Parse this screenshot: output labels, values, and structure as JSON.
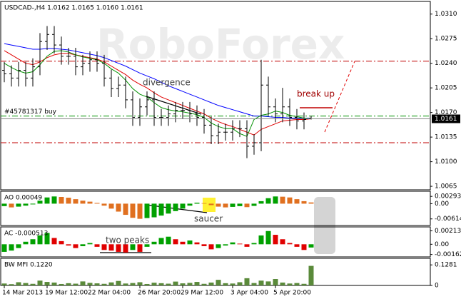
{
  "chart_data": [
    {
      "type": "ohlc",
      "title": "USDCAD-,H4 1.0162 1.0165 1.0160 1.0161",
      "watermark": "RoboForex",
      "open": [
        1.023,
        1.0225,
        1.0219,
        1.023,
        1.0219,
        1.0235,
        1.0271,
        1.0281,
        1.0266,
        1.025,
        1.025,
        1.0235,
        1.024,
        1.0245,
        1.024,
        1.0219,
        1.0204,
        1.0209,
        1.0188,
        1.0163,
        1.0178,
        1.0188,
        1.0163,
        1.0163,
        1.0168,
        1.0173,
        1.0173,
        1.0168,
        1.0163,
        1.0152,
        1.0137,
        1.0142,
        1.0142,
        1.0147,
        1.0147,
        1.0122,
        1.0127,
        1.0209,
        1.0178,
        1.0168,
        1.0178,
        1.0163,
        1.0158,
        1.0162
      ],
      "high": [
        1.0242,
        1.0237,
        1.0242,
        1.0242,
        1.0247,
        1.0283,
        1.0293,
        1.0293,
        1.0278,
        1.0262,
        1.0262,
        1.0252,
        1.0257,
        1.0257,
        1.0252,
        1.0231,
        1.0221,
        1.0221,
        1.02,
        1.019,
        1.02,
        1.02,
        1.0175,
        1.018,
        1.0185,
        1.0185,
        1.0185,
        1.018,
        1.0175,
        1.0164,
        1.0154,
        1.0154,
        1.0159,
        1.0159,
        1.0159,
        1.0139,
        1.0245,
        1.0221,
        1.019,
        1.0205,
        1.019,
        1.0175,
        1.017,
        1.0165
      ],
      "low": [
        1.0213,
        1.0207,
        1.0207,
        1.0207,
        1.0207,
        1.0223,
        1.0259,
        1.0254,
        1.0238,
        1.0238,
        1.0223,
        1.0223,
        1.0228,
        1.0228,
        1.0207,
        1.0192,
        1.0192,
        1.0176,
        1.0151,
        1.0151,
        1.0166,
        1.0151,
        1.0151,
        1.0151,
        1.0156,
        1.0161,
        1.0156,
        1.0151,
        1.014,
        1.0125,
        1.0125,
        1.013,
        1.013,
        1.0135,
        1.0105,
        1.011,
        1.0115,
        1.0166,
        1.0156,
        1.0156,
        1.0151,
        1.0146,
        1.0146,
        1.016
      ],
      "close": [
        1.0225,
        1.0219,
        1.023,
        1.0219,
        1.0235,
        1.0271,
        1.0281,
        1.0266,
        1.025,
        1.025,
        1.0235,
        1.024,
        1.0245,
        1.024,
        1.0219,
        1.0204,
        1.0209,
        1.0188,
        1.0163,
        1.0178,
        1.0188,
        1.0163,
        1.0163,
        1.0168,
        1.0173,
        1.0173,
        1.0168,
        1.0163,
        1.0152,
        1.0137,
        1.0142,
        1.0142,
        1.0147,
        1.0147,
        1.0122,
        1.0127,
        1.0209,
        1.0178,
        1.0168,
        1.0178,
        1.0163,
        1.0158,
        1.016,
        1.0161
      ],
      "color": "#000000",
      "moving_averages": [
        {
          "color": "#0000ff",
          "values": [
            1.0268,
            1.0266,
            1.0264,
            1.0262,
            1.026,
            1.026,
            1.0261,
            1.0261,
            1.026,
            1.0259,
            1.0257,
            1.0255,
            1.0253,
            1.0251,
            1.0248,
            1.0244,
            1.024,
            1.0236,
            1.0231,
            1.0226,
            1.0222,
            1.0218,
            1.0213,
            1.0208,
            1.0204,
            1.02,
            1.0196,
            1.0192,
            1.0188,
            1.0184,
            1.018,
            1.0177,
            1.0174,
            1.0171,
            1.0168,
            1.0165,
            1.0165,
            1.0164,
            1.0163,
            1.0163,
            1.0162,
            1.0162,
            1.0162,
            1.0162
          ]
        },
        {
          "color": "#e00000",
          "values": [
            1.0258,
            1.0252,
            1.0246,
            1.024,
            1.0238,
            1.0242,
            1.0248,
            1.0252,
            1.0254,
            1.0254,
            1.0252,
            1.025,
            1.0248,
            1.0246,
            1.0242,
            1.0236,
            1.023,
            1.0224,
            1.0216,
            1.021,
            1.0205,
            1.0198,
            1.0192,
            1.0188,
            1.0184,
            1.018,
            1.0176,
            1.0172,
            1.0168,
            1.0162,
            1.0157,
            1.0153,
            1.015,
            1.0146,
            1.0142,
            1.0138,
            1.0146,
            1.015,
            1.0154,
            1.0158,
            1.0159,
            1.016,
            1.016,
            1.0161
          ]
        },
        {
          "color": "#009000",
          "values": [
            1.024,
            1.0234,
            1.0229,
            1.0226,
            1.0228,
            1.0238,
            1.025,
            1.0257,
            1.0258,
            1.0256,
            1.0252,
            1.0249,
            1.0247,
            1.0245,
            1.024,
            1.0232,
            1.0226,
            1.0216,
            1.0204,
            1.0196,
            1.0192,
            1.0184,
            1.0177,
            1.0174,
            1.0172,
            1.0171,
            1.0169,
            1.0167,
            1.0163,
            1.0155,
            1.015,
            1.0147,
            1.0147,
            1.014,
            1.0136,
            1.016,
            1.0166,
            1.0168,
            1.0172,
            1.017,
            1.0166,
            1.0164,
            1.0162,
            1.0161
          ]
        }
      ],
      "levels": [
        {
          "value": 1.0243,
          "color": "#c00000"
        },
        {
          "value": 1.0127,
          "color": "#c00000"
        },
        {
          "value": 1.0165,
          "color": "#009000",
          "label": "#45781317 buy"
        }
      ],
      "current_price": 1.0161,
      "annotations": [
        "divergence",
        "break up"
      ],
      "ylim": [
        1.006,
        1.0328
      ],
      "yticks": [
        {
          "value": 1.031,
          "label": "1.0310"
        },
        1.0275,
        {
          "value": 1.024,
          "label": "1.0240"
        },
        1.0205,
        {
          "value": 1.017,
          "label": "1.0170"
        },
        1.0135,
        {
          "value": 1.01,
          "label": "1.0100"
        },
        1.0065
      ]
    },
    {
      "type": "bar",
      "title": "AO 0.00049",
      "values": [
        -0.001,
        -0.0015,
        -0.0012,
        -0.0008,
        -0.0003,
        0.0012,
        0.0025,
        0.0029,
        0.0027,
        0.0024,
        0.0018,
        0.0012,
        0.0008,
        0.0003,
        -0.0008,
        -0.002,
        -0.0032,
        -0.0045,
        -0.0057,
        -0.0061,
        -0.0058,
        -0.0055,
        -0.0048,
        -0.004,
        -0.003,
        -0.002,
        -0.0008,
        0.0004,
        0.0002,
        -0.0006,
        -0.0012,
        -0.0015,
        -0.0013,
        -0.001,
        -0.0014,
        -0.0009,
        0.001,
        0.0022,
        0.0029,
        0.0028,
        0.0025,
        0.0018,
        0.001,
        0.00049
      ],
      "up_color": "#00a000",
      "down_color": "#e07020",
      "annotations": [
        "saucer"
      ],
      "ylim": [
        -0.0088,
        0.005
      ],
      "yticks": [
        0.00293,
        {
          "value": 0,
          "label": "0.00"
        },
        -0.00614
      ]
    },
    {
      "type": "bar",
      "title": "AC -0.000513",
      "values": [
        -0.0012,
        -0.001,
        -0.0006,
        0.0004,
        0.0008,
        0.0014,
        0.0018,
        0.001,
        0.0005,
        -0.0002,
        -0.0006,
        -0.0003,
        0.0002,
        -0.0004,
        -0.0009,
        -0.001,
        -0.0012,
        -0.0013,
        -0.0009,
        -0.0012,
        -0.0004,
        0.0004,
        0.001,
        0.0012,
        0.0008,
        0.0004,
        0.0006,
        0.0003,
        -0.0003,
        -0.0008,
        -0.0006,
        -0.0002,
        0.0003,
        0.0001,
        -0.0004,
        0.0002,
        0.0014,
        0.0021,
        0.0015,
        0.0008,
        0.0002,
        -0.0004,
        -0.0009,
        -0.000513
      ],
      "up_color": "#00a000",
      "down_color": "#e00000",
      "annotations": [
        "two peaks"
      ],
      "ylim": [
        -0.002,
        0.00275
      ],
      "yticks": [
        0.00213,
        {
          "value": 0,
          "label": "0.00"
        },
        -0.00162
      ]
    },
    {
      "type": "bar",
      "title": "BW MFI 0.1220",
      "values": [
        0.012,
        0.008,
        0.02,
        0.015,
        0.01,
        0.03,
        0.022,
        0.018,
        0.009,
        0.014,
        0.011,
        0.025,
        0.016,
        0.013,
        0.01,
        0.019,
        0.028,
        0.012,
        0.015,
        0.02,
        0.009,
        0.017,
        0.014,
        0.011,
        0.024,
        0.013,
        0.016,
        0.022,
        0.01,
        0.018,
        0.035,
        0.014,
        0.012,
        0.02,
        0.045,
        0.015,
        0.03,
        0.025,
        0.04,
        0.018,
        0.012,
        0.015,
        0.01,
        0.122
      ],
      "color": "#5a8a3a",
      "categories": [
        "14 Mar 2013",
        null,
        null,
        null,
        null,
        null,
        "19 Mar 12:00",
        null,
        null,
        null,
        null,
        null,
        "22 Mar 04:00",
        null,
        null,
        null,
        null,
        null,
        null,
        "26 Mar 20:00",
        null,
        null,
        null,
        null,
        null,
        "29 Mar 12:00",
        null,
        null,
        null,
        null,
        null,
        null,
        "3 Apr 04:00",
        null,
        null,
        null,
        null,
        null,
        "5 Apr 20:00",
        null,
        null,
        null,
        null,
        null
      ],
      "ylim": [
        0,
        0.169
      ],
      "yticks": [
        0.1281,
        0
      ]
    }
  ]
}
